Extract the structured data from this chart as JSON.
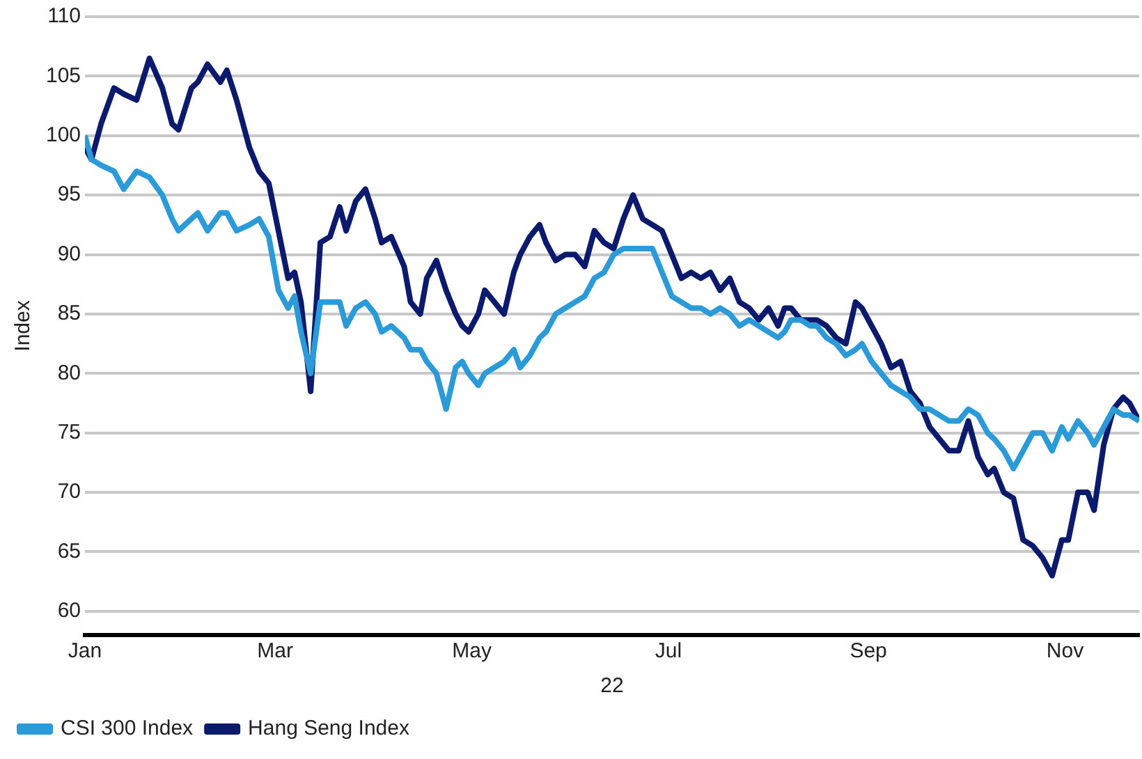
{
  "chart_data": {
    "type": "line",
    "ylabel": "Index",
    "xlabel": "22",
    "x": [
      "--01-01",
      "--01-03",
      "--01-06",
      "--01-10",
      "--01-13",
      "--01-17",
      "--01-21",
      "--01-25",
      "--01-28",
      "--01-30",
      "--02-03",
      "--02-05",
      "--02-08",
      "--02-12",
      "--02-14",
      "--02-17",
      "--02-21",
      "--02-24",
      "--02-27",
      "--03-02",
      "--03-05",
      "--03-07",
      "--03-09",
      "--03-12",
      "--03-15",
      "--03-18",
      "--03-21",
      "--03-23",
      "--03-26",
      "--03-29",
      "--04-01",
      "--04-03",
      "--04-06",
      "--04-10",
      "--04-12",
      "--04-15",
      "--04-17",
      "--04-20",
      "--04-23",
      "--04-26",
      "--04-28",
      "--04-30",
      "--05-03",
      "--05-05",
      "--05-08",
      "--05-11",
      "--05-14",
      "--05-16",
      "--05-19",
      "--05-22",
      "--05-24",
      "--05-27",
      "--05-30",
      "--06-02",
      "--06-05",
      "--06-08",
      "--06-11",
      "--06-14",
      "--06-17",
      "--06-20",
      "--06-23",
      "--06-26",
      "--06-29",
      "--07-02",
      "--07-05",
      "--07-08",
      "--07-11",
      "--07-14",
      "--07-17",
      "--07-20",
      "--07-23",
      "--07-26",
      "--07-29",
      "--08-01",
      "--08-04",
      "--08-06",
      "--08-08",
      "--08-11",
      "--08-14",
      "--08-16",
      "--08-19",
      "--08-22",
      "--08-25",
      "--08-28",
      "--08-30",
      "--09-02",
      "--09-05",
      "--09-08",
      "--09-11",
      "--09-14",
      "--09-17",
      "--09-20",
      "--09-23",
      "--09-26",
      "--09-29",
      "--10-02",
      "--10-05",
      "--10-08",
      "--10-10",
      "--10-13",
      "--10-16",
      "--10-19",
      "--10-22",
      "--10-25",
      "--10-28",
      "--10-31",
      "--11-02",
      "--11-05",
      "--11-08",
      "--11-10",
      "--11-13",
      "--11-16",
      "--11-19",
      "--11-21",
      "--11-24"
    ],
    "series": [
      {
        "name": "CSI 300 Index",
        "color": "#2a9ad8",
        "values": [
          100,
          98,
          97.5,
          97,
          95.5,
          97,
          96.5,
          95,
          93,
          92,
          93,
          93.5,
          92,
          93.5,
          93.5,
          92,
          92.5,
          93,
          91.5,
          87,
          85.5,
          86.5,
          83.5,
          80,
          86,
          86,
          86,
          84,
          85.5,
          86,
          85,
          83.5,
          84,
          83,
          82,
          82,
          81,
          80,
          77,
          80.5,
          81,
          80,
          79,
          80,
          80.5,
          81,
          82,
          80.5,
          81.5,
          83,
          83.5,
          85,
          85.5,
          86,
          86.5,
          88,
          88.5,
          90,
          90.5,
          90.5,
          90.5,
          90.5,
          88.5,
          86.5,
          86,
          85.5,
          85.5,
          85,
          85.5,
          85,
          84,
          84.5,
          84,
          83.5,
          83,
          83.5,
          84.5,
          84.5,
          84,
          84,
          83,
          82.5,
          81.5,
          82,
          82.5,
          81,
          80,
          79,
          78.5,
          78,
          77,
          77,
          76.5,
          76,
          76,
          77,
          76.5,
          75,
          74.5,
          73.5,
          72,
          73.5,
          75,
          75,
          73.5,
          75.5,
          74.5,
          76,
          75,
          74,
          75.5,
          77,
          76.5,
          76.5,
          76
        ]
      },
      {
        "name": "Hang Seng Index",
        "color": "#0c1a6e",
        "values": [
          99,
          98,
          101,
          104,
          103.5,
          103,
          106.5,
          104,
          101,
          100.5,
          104,
          104.5,
          106,
          104.5,
          105.5,
          103,
          99,
          97,
          96,
          92,
          88,
          88.5,
          86,
          78.5,
          91,
          91.5,
          94,
          92,
          94.5,
          95.5,
          93,
          91,
          91.5,
          89,
          86,
          85,
          88,
          89.5,
          87,
          85,
          84,
          83.5,
          85,
          87,
          86,
          85,
          88.5,
          90,
          91.5,
          92.5,
          91,
          89.5,
          90,
          90,
          89,
          92,
          91,
          90.5,
          93,
          95,
          93,
          92.5,
          92,
          90,
          88,
          88.5,
          88,
          88.5,
          87,
          88,
          86,
          85.5,
          84.5,
          85.5,
          84,
          85.5,
          85.5,
          84.5,
          84.5,
          84.5,
          84,
          83,
          82.5,
          86,
          85.5,
          84,
          82.5,
          80.5,
          81,
          78.5,
          77.5,
          75.5,
          74.5,
          73.5,
          73.5,
          76,
          73,
          71.5,
          72,
          70,
          69.5,
          66,
          65.5,
          64.5,
          63,
          66,
          66,
          70,
          70,
          68.5,
          74,
          77,
          78,
          77.5,
          76
        ]
      }
    ],
    "xlim": [
      "--01-01",
      "--11-24"
    ],
    "xticks": [
      {
        "value": "--01-01",
        "label": "Jan"
      },
      {
        "value": "--03-01",
        "label": "Mar"
      },
      {
        "value": "--05-01",
        "label": "May"
      },
      {
        "value": "--07-01",
        "label": "Jul"
      },
      {
        "value": "--09-01",
        "label": "Sep"
      },
      {
        "value": "--11-01",
        "label": "Nov"
      }
    ],
    "ylim": [
      58,
      110
    ],
    "yticks": [
      60,
      65,
      70,
      75,
      80,
      85,
      90,
      95,
      100,
      105,
      110
    ],
    "grid": "y",
    "legend": "bottom left",
    "marker": "none",
    "line_style": "solid"
  }
}
